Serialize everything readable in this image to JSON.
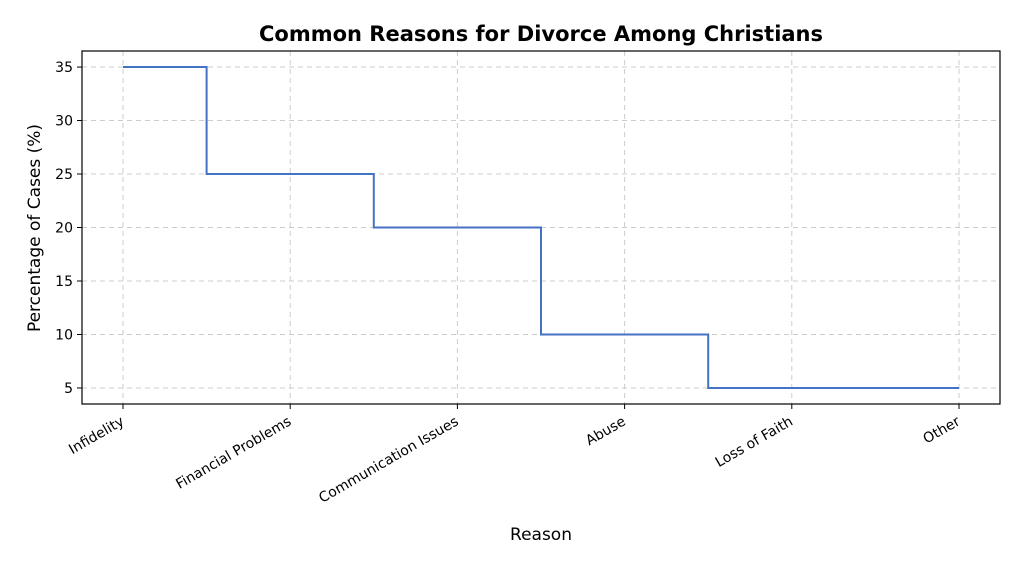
{
  "chart_data": {
    "type": "line",
    "step": "mid",
    "title": "Common Reasons for Divorce Among Christians",
    "xlabel": "Reason",
    "ylabel": "Percentage of Cases (%)",
    "categories": [
      "Infidelity",
      "Financial Problems",
      "Communication Issues",
      "Abuse",
      "Loss of Faith",
      "Other"
    ],
    "values": [
      35,
      25,
      20,
      10,
      5,
      5
    ],
    "ylim": [
      3.5,
      36.5
    ],
    "yticks": [
      5,
      10,
      15,
      20,
      25,
      30,
      35
    ],
    "grid": true,
    "line_color": "#4472c4"
  }
}
